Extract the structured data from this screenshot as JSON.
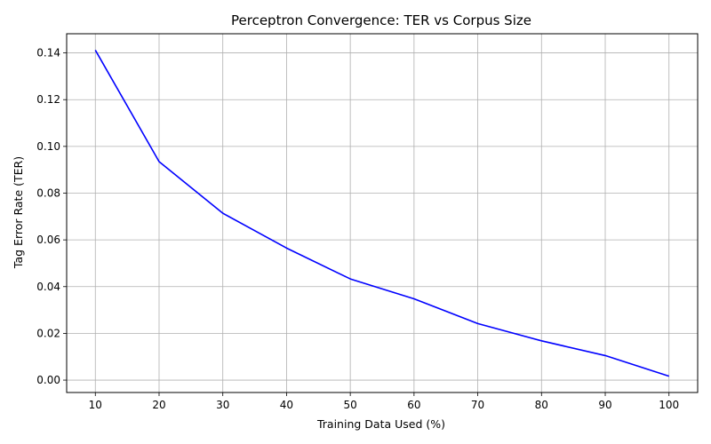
{
  "chart_data": {
    "type": "line",
    "title": "Perceptron Convergence: TER vs Corpus Size",
    "xlabel": "Training Data Used (%)",
    "ylabel": "Tag Error Rate (TER)",
    "x": [
      10,
      20,
      30,
      40,
      50,
      60,
      70,
      80,
      90,
      100
    ],
    "series": [
      {
        "values": [
          0.1412,
          0.0935,
          0.0714,
          0.0565,
          0.0433,
          0.0348,
          0.0242,
          0.0168,
          0.0105,
          0.0017
        ]
      }
    ],
    "xlim": [
      5.5,
      104.5
    ],
    "ylim": [
      -0.0053,
      0.1482
    ],
    "xticks": [
      10,
      20,
      30,
      40,
      50,
      60,
      70,
      80,
      90,
      100
    ],
    "yticks": [
      0.0,
      0.02,
      0.04,
      0.06,
      0.08,
      0.1,
      0.12,
      0.14
    ],
    "ytick_labels": [
      "0.00",
      "0.02",
      "0.04",
      "0.06",
      "0.08",
      "0.10",
      "0.12",
      "0.14"
    ],
    "grid": true,
    "line_color": "#0000ff"
  }
}
